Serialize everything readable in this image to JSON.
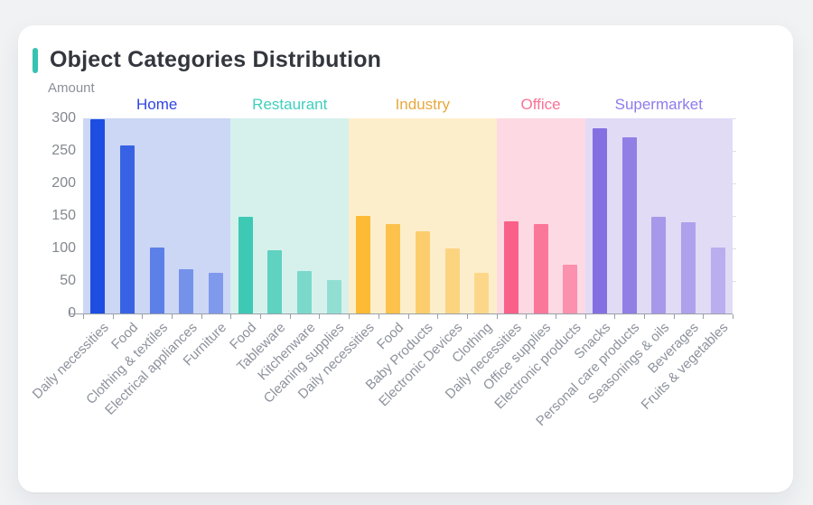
{
  "header": {
    "title": "Object Categories Distribution",
    "accent_color": "#36c3b1"
  },
  "chart_data": {
    "type": "bar",
    "title": "Object Categories Distribution",
    "xlabel": "",
    "ylabel": "Amount",
    "y_axis": {
      "min": 0,
      "max": 300,
      "tick_step": 50,
      "tick_labels": [
        "0",
        "50",
        "100",
        "150",
        "200",
        "250",
        "300"
      ]
    },
    "grid": false,
    "legend_position": "top-inside",
    "groups": [
      {
        "name": "Home",
        "label_color": "#2f45e3",
        "bar_color": "#1d4de1",
        "band_color": "#ccd6f5",
        "bar_alphas": [
          1,
          0.85,
          0.63,
          0.5,
          0.44
        ],
        "categories": [
          "Daily necessities",
          "Food",
          "Clothing & textiles",
          "Electrical appliances",
          "Furniture"
        ],
        "values": [
          298,
          258,
          102,
          68,
          63
        ]
      },
      {
        "name": "Restaurant",
        "label_color": "#3fcfbe",
        "bar_color": "#3ec9b5",
        "band_color": "#d6f1ec",
        "bar_alphas": [
          1,
          0.78,
          0.6,
          0.45
        ],
        "categories": [
          "Food",
          "Tableware",
          "Kitchenware",
          "Cleaning supplies"
        ],
        "values": [
          148,
          97,
          65,
          52
        ]
      },
      {
        "name": "Industry",
        "label_color": "#e8a83e",
        "bar_color": "#fcba35",
        "band_color": "#fdeecb",
        "bar_alphas": [
          1,
          0.85,
          0.63,
          0.5,
          0.44
        ],
        "categories": [
          "Daily necessities",
          "Food",
          "Baby Products",
          "Electronic Devices",
          "Clothing"
        ],
        "values": [
          150,
          138,
          126,
          100,
          63
        ]
      },
      {
        "name": "Office",
        "label_color": "#fa7396",
        "bar_color": "#fa6189",
        "band_color": "#fdd9e3",
        "bar_alphas": [
          1,
          0.82,
          0.6
        ],
        "categories": [
          "Daily necessities",
          "Office supplies",
          "Electronic products"
        ],
        "values": [
          142,
          138,
          75
        ]
      },
      {
        "name": "Supermarket",
        "label_color": "#8e7bec",
        "bar_color": "#8570e2",
        "band_color": "#e1dbf6",
        "bar_alphas": [
          1,
          0.86,
          0.62,
          0.54,
          0.42
        ],
        "categories": [
          "Snacks",
          "Personal care products",
          "Seasonings & oils",
          "Beverages",
          "Fruits & vegetables"
        ],
        "values": [
          285,
          271,
          148,
          140,
          101
        ]
      }
    ]
  }
}
